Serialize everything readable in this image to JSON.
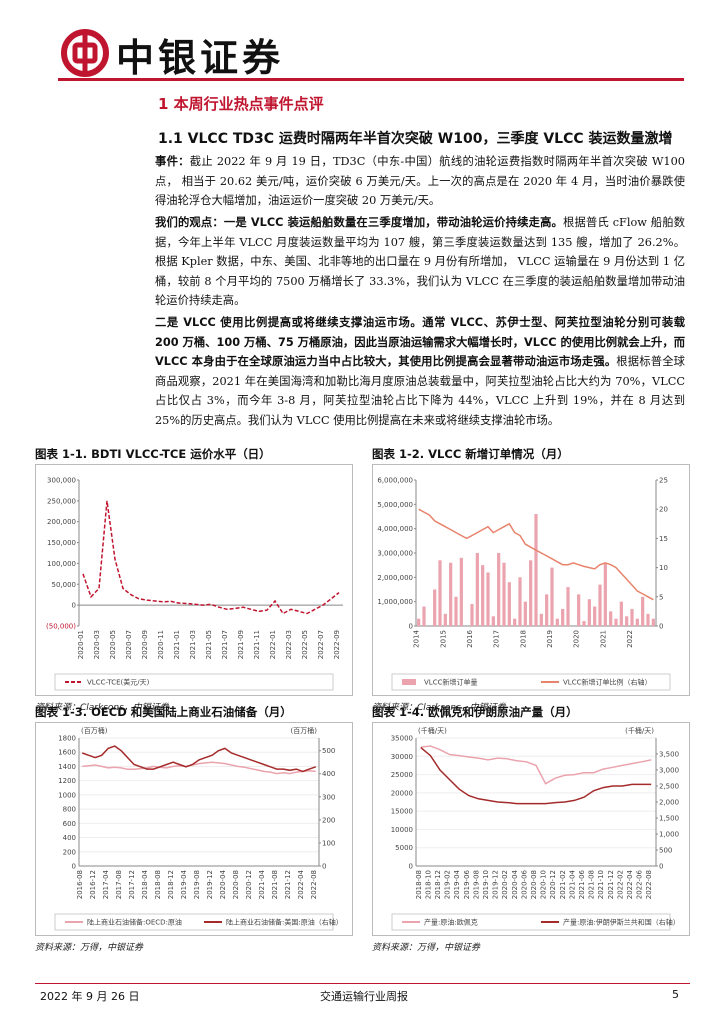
{
  "header": {
    "brand": "中银证券"
  },
  "section_title": "1 本周行业热点事件点评",
  "subsection_title": "1.1 VLCC TD3C 运费时隔两年半首次突破 W100，三季度 VLCC 装运数量激增",
  "paragraphs": [
    {
      "lead": "事件：",
      "text": "截止 2022 年 9 月 19 日，TD3C（中东-中国）航线的油轮运费指数时隔两年半首次突破 W100 点， 相当于 20.62 美元/吨，运价突破 6 万美元/天。上一次的高点是在 2020 年 4 月，当时油价暴跌使得油轮浮仓大幅增加，油运运价一度突破 20 万美元/天。"
    },
    {
      "lead": "我们的观点：一是 VLCC 装运船舶数量在三季度增加，带动油轮运价持续走高。",
      "text": "根据普氏 cFlow 船舶数据，今年上半年 VLCC 月度装运数量平均为 107 艘，第三季度装运数量达到 135 艘，增加了 26.2%。根据 Kpler 数据，中东、美国、北非等地的出口量在 9 月份有所增加， VLCC 运输量在 9 月份达到 1 亿桶，较前 8 个月平均的 7500 万桶增长了 33.3%，我们认为 VLCC 在三季度的装运船舶数量增加带动油轮运价持续走高。"
    },
    {
      "lead": "二是 VLCC 使用比例提高或将继续支撑油运市场。通常 VLCC、苏伊士型、阿芙拉型油轮分别可装载 200 万桶、100 万桶、75 万桶原油，因此当原油运输需求大幅增长时，VLCC 的使用比例就会上升，而 VLCC 本身由于在全球原油运力当中占比较大，其使用比例提高会显著带动油运市场走强。",
      "text": "根据标普全球商品观察，2021 年在美国海湾和加勒比海月度原油总装载量中，阿芙拉型油轮占比大约为 70%，VLCC 占比仅占 3%，而今年 3-8 月，阿芙拉型油轮占比下降为 44%，VLCC 上升到 19%，并在 8 月达到 25%的历史高点。我们认为 VLCC 使用比例提高在未来或将继续支撑油轮市场。"
    }
  ],
  "chart_data": [
    {
      "type": "line",
      "title": "图表 1-1. BDTI VLCC-TCE 运价水平（日）",
      "source": "资料来源：Clarksons，中银证券",
      "categories": [
        "2020-01",
        null,
        "2020-03",
        null,
        "2020-05",
        null,
        "2020-07",
        null,
        "2020-09",
        null,
        "2020-11",
        null,
        "2021-01",
        null,
        "2021-03",
        null,
        "2021-05",
        null,
        "2021-07",
        null,
        "2021-09",
        null,
        "2021-11",
        null,
        "2022-01",
        null,
        "2022-03",
        null,
        "2022-05",
        null,
        "2022-07",
        null,
        "2022-09"
      ],
      "series": [
        {
          "name": "VLCC-TCE(美元/天)",
          "color": "#c0152f",
          "style": "dashed",
          "values": [
            75000,
            20000,
            40000,
            250000,
            110000,
            40000,
            25000,
            15000,
            12000,
            10000,
            8000,
            9000,
            5000,
            4000,
            2000,
            0,
            2000,
            -5000,
            -10000,
            -8000,
            -5000,
            -10000,
            -15000,
            -12000,
            10000,
            -20000,
            -10000,
            -15000,
            -20000,
            -10000,
            0,
            15000,
            30000
          ]
        }
      ],
      "ylim": [
        -50000,
        300000
      ],
      "yticks": [
        {
          "value": -50000,
          "label": "(50,000)"
        },
        0,
        {
          "value": 50000,
          "label": "50,000"
        },
        {
          "value": 100000,
          "label": "100,000"
        },
        {
          "value": 150000,
          "label": "150,000"
        },
        {
          "value": 200000,
          "label": "200,000"
        },
        {
          "value": 250000,
          "label": "250,000"
        },
        {
          "value": 300000,
          "label": "300,000"
        }
      ],
      "negative_color": "#c0152f"
    },
    {
      "type": "bar_line",
      "title": "图表 1-2. VLCC 新增订单情况（月）",
      "source": "资料来源：Clarksons，中银证券",
      "categories": [
        "2014",
        null,
        null,
        null,
        null,
        "2015",
        null,
        null,
        null,
        null,
        "2016",
        null,
        null,
        null,
        null,
        "2017",
        null,
        null,
        null,
        null,
        "2018",
        null,
        null,
        null,
        null,
        "2019",
        null,
        null,
        null,
        null,
        "2020",
        null,
        null,
        null,
        null,
        "2021",
        null,
        null,
        null,
        null,
        "2022",
        null,
        null,
        null,
        null
      ],
      "series": [
        {
          "name": "VLCC新增订单量",
          "color": "#eba3ad",
          "style": "bar",
          "values": [
            300000,
            800000,
            0,
            1500000,
            2700000,
            500000,
            2600000,
            1200000,
            2800000,
            0,
            900000,
            3000000,
            2500000,
            2200000,
            400000,
            3000000,
            2600000,
            1800000,
            300000,
            2000000,
            1000000,
            2700000,
            4600000,
            500000,
            1300000,
            2400000,
            300000,
            700000,
            1600000,
            0,
            1300000,
            200000,
            1100000,
            800000,
            1700000,
            2600000,
            600000,
            300000,
            1000000,
            400000,
            700000,
            300000,
            1200000,
            500000,
            300000
          ]
        },
        {
          "name": "VLCC新增订单比例（右轴）",
          "color": "#e8836b",
          "style": "line",
          "axis": "y2",
          "values": [
            20,
            19.5,
            19,
            18,
            17.5,
            17,
            16.5,
            16,
            15.5,
            15,
            15.5,
            16,
            16.5,
            17,
            16,
            16.5,
            17,
            17.5,
            16,
            15.5,
            14,
            13.5,
            13,
            12.5,
            12,
            11.5,
            11,
            10.5,
            10.5,
            10.8,
            10.5,
            10.2,
            10,
            9.8,
            10.5,
            10.8,
            10.5,
            10,
            9,
            8,
            7,
            6,
            5.5,
            5,
            4.5
          ]
        }
      ],
      "ylim": [
        0,
        6000000
      ],
      "yticks": [
        0,
        {
          "value": 1000000,
          "label": "1,000,000"
        },
        {
          "value": 2000000,
          "label": "2,000,000"
        },
        {
          "value": 3000000,
          "label": "3,000,000"
        },
        {
          "value": 4000000,
          "label": "4,000,000"
        },
        {
          "value": 5000000,
          "label": "5,000,000"
        },
        {
          "value": 6000000,
          "label": "6,000,000"
        }
      ],
      "y2lim": [
        0,
        25
      ],
      "y2ticks": [
        0,
        5,
        10,
        15,
        20,
        25
      ]
    },
    {
      "type": "line",
      "title": "图表 1-3. OECD 和美国陆上商业石油储备（月）",
      "source": "资料来源：万得，中银证券",
      "y_unit": "(百万桶)",
      "y2_unit": "(百万桶)",
      "categories": [
        "2016-08",
        null,
        "2016-12",
        null,
        "2017-04",
        null,
        "2017-08",
        null,
        "2017-12",
        null,
        "2018-04",
        null,
        "2018-08",
        null,
        "2018-12",
        null,
        "2019-04",
        null,
        "2019-08",
        null,
        "2019-12",
        null,
        "2020-04",
        null,
        "2020-08",
        null,
        "2020-12",
        null,
        "2021-04",
        null,
        "2021-08",
        null,
        "2021-12",
        null,
        "2022-04",
        null,
        "2022-08"
      ],
      "series": [
        {
          "name": "陆上商业石油储备:OECD:原油",
          "color": "#eba3ad",
          "style": "line",
          "values": [
            1400,
            1410,
            1420,
            1400,
            1380,
            1390,
            1380,
            1360,
            1360,
            1370,
            1380,
            1400,
            1390,
            1380,
            1400,
            1410,
            1400,
            1420,
            1440,
            1450,
            1460,
            1450,
            1440,
            1420,
            1400,
            1390,
            1370,
            1350,
            1330,
            1320,
            1300,
            1310,
            1300,
            1320,
            1330,
            1340,
            1330
          ]
        },
        {
          "name": "陆上商业石油储备:美国:原油（右轴）",
          "color": "#a52a2a",
          "style": "line",
          "axis": "y2",
          "values": [
            490,
            480,
            470,
            480,
            510,
            520,
            500,
            470,
            440,
            430,
            420,
            420,
            430,
            440,
            450,
            440,
            430,
            440,
            460,
            470,
            480,
            500,
            510,
            490,
            480,
            470,
            460,
            450,
            440,
            430,
            420,
            420,
            415,
            420,
            410,
            420,
            430
          ]
        }
      ],
      "ylim": [
        0,
        1800
      ],
      "yticks": [
        0,
        200,
        400,
        600,
        800,
        1000,
        1200,
        1400,
        1600,
        1800
      ],
      "y2lim": [
        0,
        555
      ],
      "y2ticks": [
        0,
        100,
        200,
        300,
        400,
        500
      ],
      "grid": true
    },
    {
      "type": "line",
      "title": "图表 1-4. 欧佩克和伊朗原油产量（月）",
      "source": "资料来源：万得，中银证券",
      "y_unit": "(千桶/天)",
      "y2_unit": "(千桶/天)",
      "categories": [
        "2018-08",
        "2018-10",
        "2018-12",
        "2019-02",
        "2019-04",
        "2019-06",
        "2019-08",
        "2019-10",
        "2019-12",
        "2020-02",
        "2020-04",
        "2020-06",
        "2020-08",
        "2020-10",
        "2020-12",
        "2021-02",
        "2021-04",
        "2021-06",
        "2021-08",
        "2021-10",
        "2021-12",
        "2022-02",
        "2022-04",
        "2022-06",
        "2022-08"
      ],
      "series": [
        {
          "name": "产量:原油:欧佩克",
          "color": "#eba3ad",
          "style": "line",
          "values": [
            32500,
            32800,
            31800,
            30500,
            30200,
            29800,
            29500,
            29000,
            29500,
            29300,
            28800,
            28500,
            27500,
            22500,
            24000,
            24800,
            25000,
            25500,
            25500,
            26500,
            27000,
            27500,
            28000,
            28500,
            29000
          ]
        },
        {
          "name": "产量:原油:伊朗伊斯兰共和国（右轴）",
          "color": "#a52a2a",
          "style": "line",
          "axis": "y2",
          "values": [
            3700,
            3450,
            3000,
            2700,
            2400,
            2200,
            2100,
            2050,
            2000,
            1980,
            1950,
            1950,
            1950,
            1950,
            1980,
            2000,
            2050,
            2150,
            2350,
            2450,
            2500,
            2500,
            2550,
            2550,
            2550
          ]
        }
      ],
      "ylim": [
        0,
        35000
      ],
      "yticks": [
        0,
        5000,
        10000,
        15000,
        20000,
        25000,
        30000,
        35000
      ],
      "y2lim": [
        0,
        4000
      ],
      "y2ticks": [
        0,
        {
          "value": 500,
          "label": "500"
        },
        {
          "value": 1000,
          "label": "1,000"
        },
        {
          "value": 1500,
          "label": "1,500"
        },
        {
          "value": 2000,
          "label": "2,000"
        },
        {
          "value": 2500,
          "label": "2,500"
        },
        {
          "value": 3000,
          "label": "3,000"
        },
        {
          "value": 3500,
          "label": "3,500"
        }
      ],
      "grid": true
    }
  ],
  "footer": {
    "date": "2022 年 9 月 26 日",
    "report": "交通运输行业周报",
    "page": "5"
  }
}
